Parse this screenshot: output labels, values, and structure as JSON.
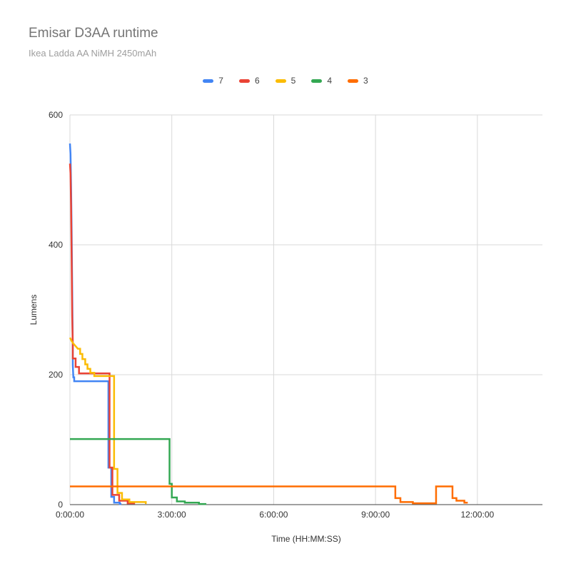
{
  "header": {
    "title": "Emisar D3AA runtime",
    "subtitle": "Ikea Ladda AA NiMH 2450mAh"
  },
  "chart_data": {
    "type": "line",
    "title": "Emisar D3AA runtime",
    "subtitle": "Ikea Ladda AA NiMH 2450mAh",
    "xlabel": "Time (HH:MM:SS)",
    "ylabel": "Lumens",
    "x_unit": "minutes",
    "x_max_minutes": 835,
    "y_max": 600,
    "grid": true,
    "legend_position": "top",
    "axis_color": "#424242",
    "grid_color": "#d9d9d9",
    "x_ticks": [
      {
        "minutes": 0,
        "label": "0:00:00"
      },
      {
        "minutes": 180,
        "label": "3:00:00"
      },
      {
        "minutes": 360,
        "label": "6:00:00"
      },
      {
        "minutes": 540,
        "label": "9:00:00"
      },
      {
        "minutes": 720,
        "label": "12:00:00"
      }
    ],
    "y_ticks": [
      {
        "value": 0,
        "label": "0"
      },
      {
        "value": 200,
        "label": "200"
      },
      {
        "value": 400,
        "label": "400"
      },
      {
        "value": 600,
        "label": "600"
      }
    ],
    "series": [
      {
        "name": "7",
        "color": "#4285F4",
        "points": [
          [
            0,
            556
          ],
          [
            1,
            540
          ],
          [
            2,
            490
          ],
          [
            3,
            420
          ],
          [
            4,
            330
          ],
          [
            5,
            240
          ],
          [
            5,
            215
          ],
          [
            6,
            196
          ],
          [
            7.5,
            196
          ],
          [
            7.5,
            190
          ],
          [
            68,
            190
          ],
          [
            68,
            57
          ],
          [
            73,
            57
          ],
          [
            73,
            12
          ],
          [
            78,
            12
          ],
          [
            78,
            3
          ],
          [
            88,
            3
          ],
          [
            88,
            1
          ],
          [
            91,
            1
          ]
        ]
      },
      {
        "name": "6",
        "color": "#EA4335",
        "points": [
          [
            0,
            525
          ],
          [
            1,
            510
          ],
          [
            2,
            460
          ],
          [
            3,
            380
          ],
          [
            4,
            290
          ],
          [
            5,
            245
          ],
          [
            5,
            225
          ],
          [
            10,
            225
          ],
          [
            10,
            212
          ],
          [
            16,
            212
          ],
          [
            16,
            202
          ],
          [
            70,
            202
          ],
          [
            70,
            57
          ],
          [
            75,
            57
          ],
          [
            75,
            15
          ],
          [
            87,
            15
          ],
          [
            87,
            6
          ],
          [
            102,
            6
          ],
          [
            102,
            2
          ],
          [
            115,
            2
          ]
        ]
      },
      {
        "name": "5",
        "color": "#FBBC04",
        "points": [
          [
            0,
            257
          ],
          [
            3,
            252
          ],
          [
            6,
            248
          ],
          [
            10,
            244
          ],
          [
            14,
            240
          ],
          [
            18,
            240
          ],
          [
            18,
            232
          ],
          [
            22,
            232
          ],
          [
            22,
            224
          ],
          [
            27,
            224
          ],
          [
            27,
            216
          ],
          [
            31,
            216
          ],
          [
            31,
            209
          ],
          [
            36,
            209
          ],
          [
            36,
            203
          ],
          [
            43,
            203
          ],
          [
            43,
            198
          ],
          [
            78,
            198
          ],
          [
            78,
            55
          ],
          [
            84,
            55
          ],
          [
            84,
            18
          ],
          [
            92,
            18
          ],
          [
            92,
            8
          ],
          [
            105,
            8
          ],
          [
            105,
            4
          ],
          [
            134,
            4
          ],
          [
            134,
            1
          ]
        ]
      },
      {
        "name": "4",
        "color": "#34A853",
        "points": [
          [
            0,
            101
          ],
          [
            176,
            101
          ],
          [
            176,
            32
          ],
          [
            180,
            32
          ],
          [
            180,
            11
          ],
          [
            189,
            11
          ],
          [
            189,
            5
          ],
          [
            203,
            5
          ],
          [
            203,
            3
          ],
          [
            228,
            3
          ],
          [
            228,
            1
          ],
          [
            241,
            1
          ]
        ]
      },
      {
        "name": "3",
        "color": "#FF6D01",
        "points": [
          [
            0,
            28
          ],
          [
            575,
            28
          ],
          [
            575,
            10
          ],
          [
            584,
            10
          ],
          [
            584,
            4
          ],
          [
            606,
            4
          ],
          [
            606,
            2
          ],
          [
            647,
            2
          ],
          [
            647,
            28
          ],
          [
            676,
            28
          ],
          [
            676,
            10
          ],
          [
            683,
            10
          ],
          [
            683,
            6
          ],
          [
            697,
            6
          ],
          [
            697,
            3
          ],
          [
            703,
            3
          ]
        ]
      }
    ]
  }
}
